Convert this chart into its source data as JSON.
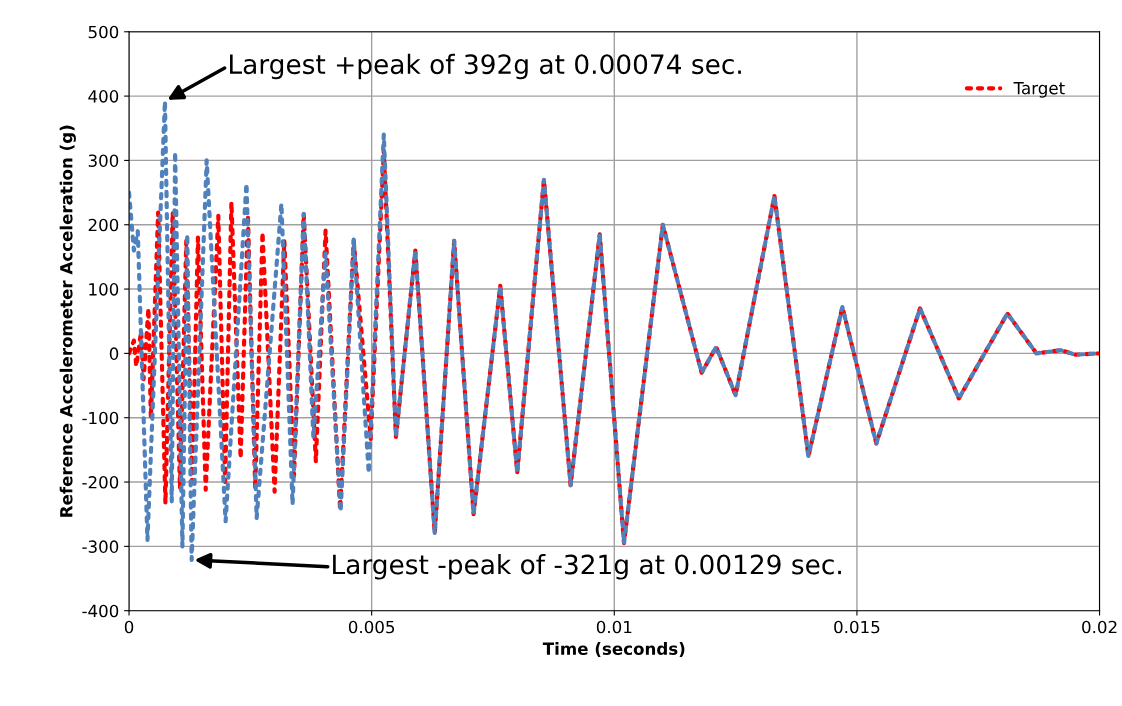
{
  "chart_data": {
    "type": "line",
    "xlabel": "Time (seconds)",
    "ylabel": "Reference Accelerometer Acceleration (g)",
    "xlim": [
      0,
      0.02
    ],
    "xticks": [
      0,
      0.005,
      0.01,
      0.015,
      0.02
    ],
    "ylim": [
      -400,
      500
    ],
    "yticks": [
      -400,
      -300,
      -200,
      -100,
      0,
      100,
      200,
      300,
      400,
      500
    ],
    "grid": true,
    "legend": "top right",
    "line_style": "dotted",
    "marker": "none",
    "series": [
      {
        "name": "Target",
        "color": "#ff0000",
        "x": [
          0,
          0.0001,
          0.00015,
          0.00025,
          0.0003,
          0.0004,
          0.00045,
          0.0006,
          0.00075,
          0.0009,
          0.00105,
          0.00118,
          0.0013,
          0.00142,
          0.00158,
          0.00184,
          0.00198,
          0.00211,
          0.0023,
          0.00245,
          0.0026,
          0.00275,
          0.003,
          0.0032,
          0.0034,
          0.0036,
          0.00385,
          0.00405,
          0.00435,
          0.00463,
          0.00498,
          0.00525,
          0.0055,
          0.0059,
          0.0063,
          0.0067,
          0.0071,
          0.00765,
          0.008,
          0.00855,
          0.0091,
          0.0097,
          0.0102,
          0.011,
          0.0118,
          0.0121,
          0.0125,
          0.0133,
          0.014,
          0.0147,
          0.0154,
          0.0163,
          0.0171,
          0.0181,
          0.0187,
          0.0192,
          0.0195,
          0.02
        ],
        "values": [
          0,
          20,
          -20,
          35,
          -40,
          70,
          -100,
          219,
          -233,
          220,
          -210,
          175,
          -200,
          180,
          -212,
          214,
          -200,
          235,
          -163,
          215,
          -210,
          188,
          -215,
          175,
          -190,
          217,
          -168,
          191,
          -243,
          175,
          -133,
          315,
          -130,
          160,
          -280,
          175,
          -250,
          105,
          -185,
          270,
          -205,
          185,
          -295,
          200,
          -30,
          10,
          -65,
          245,
          -160,
          72,
          -140,
          70,
          -70,
          62,
          0,
          5,
          -2,
          0
        ]
      },
      {
        "color": "#4f81bd",
        "x": [
          0,
          0.0001,
          0.00018,
          0.00038,
          0.00074,
          0.00088,
          0.00095,
          0.0011,
          0.0012,
          0.00129,
          0.0016,
          0.00199,
          0.00242,
          0.00263,
          0.00314,
          0.00337,
          0.0036,
          0.0038,
          0.00405,
          0.00436,
          0.00463,
          0.00494,
          0.00525,
          0.0055,
          0.0059,
          0.0063,
          0.0067,
          0.0071,
          0.00765,
          0.008,
          0.00855,
          0.0091,
          0.0097,
          0.0102,
          0.011,
          0.0118,
          0.0121,
          0.0125,
          0.0133,
          0.014,
          0.0147,
          0.0154,
          0.0163,
          0.0171,
          0.0181,
          0.0187,
          0.0192,
          0.0195,
          0.02
        ],
        "values": [
          250,
          160,
          190,
          -290,
          392,
          -230,
          313,
          -300,
          185,
          -321,
          300,
          -261,
          264,
          -256,
          233,
          -235,
          217,
          -132,
          155,
          -246,
          178,
          -186,
          340,
          -130,
          160,
          -280,
          175,
          -250,
          105,
          -185,
          270,
          -205,
          185,
          -295,
          200,
          -30,
          10,
          -65,
          245,
          -160,
          72,
          -140,
          70,
          -70,
          62,
          0,
          5,
          -2,
          0
        ]
      }
    ],
    "annotations": [
      {
        "text": "Largest +peak of 392g at 0.00074 sec.",
        "x": 0.00074,
        "y": 392
      },
      {
        "text": "Largest -peak of -321g at 0.00129 sec.",
        "x": 0.00129,
        "y": -321
      }
    ]
  }
}
